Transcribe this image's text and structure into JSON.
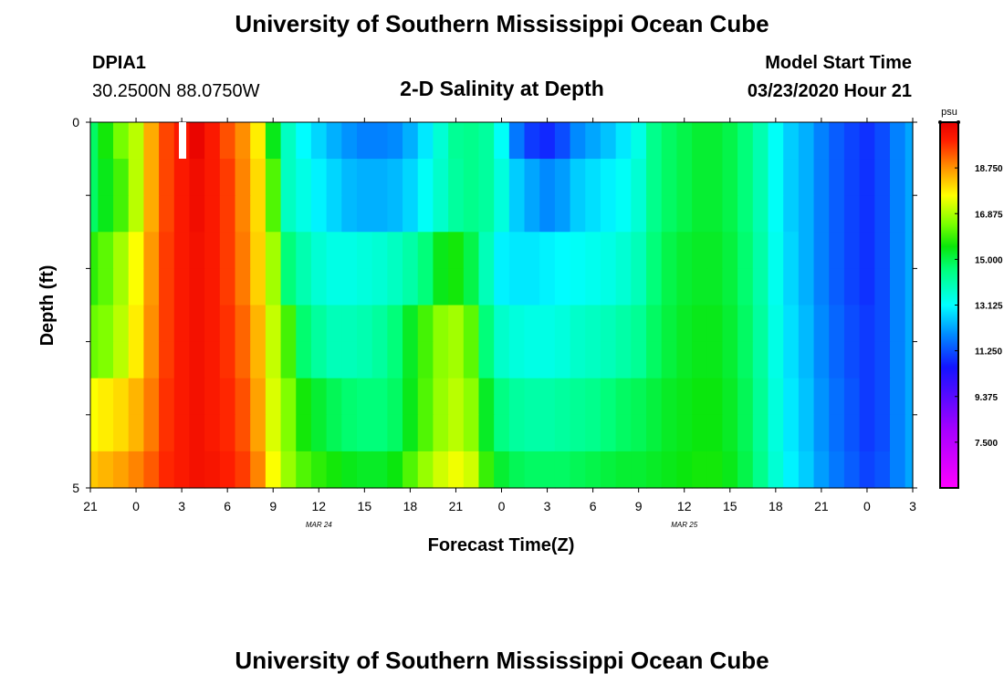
{
  "title_top": "University of Southern Mississippi Ocean Cube",
  "title_bottom": "University of Southern Mississippi Ocean Cube",
  "station": "DPIA1",
  "location": "30.2500N 88.0750W",
  "plot_title": "2-D Salinity at Depth",
  "model_start_label": "Model Start Time",
  "model_start_value": "03/23/2020 Hour 21",
  "chart_data": {
    "type": "heatmap",
    "xlabel": "Forecast Time(Z)",
    "ylabel": "Depth (ft)",
    "x_tick_labels": [
      "21",
      "0",
      "3",
      "6",
      "9",
      "12",
      "15",
      "18",
      "21",
      "0",
      "3",
      "6",
      "9",
      "12",
      "15",
      "18",
      "21",
      "0",
      "3"
    ],
    "date_labels": [
      {
        "label": "MAR 24",
        "at_tick": 5
      },
      {
        "label": "MAR 25",
        "at_tick": 13
      }
    ],
    "y_tick_labels": [
      "0",
      "5"
    ],
    "ylim": [
      0,
      5
    ],
    "colorbar": {
      "unit": "psu",
      "range": [
        5.625,
        20.625
      ],
      "tick_labels": [
        "18.750",
        "16.875",
        "15.000",
        "13.125",
        "11.250",
        "9.375",
        "7.500"
      ],
      "tick_values": [
        18.75,
        16.875,
        15.0,
        13.125,
        11.25,
        9.375,
        7.5
      ]
    },
    "time_hours": [
      0,
      1,
      2,
      3,
      4,
      5,
      6,
      7,
      8,
      9,
      10,
      11,
      12,
      13,
      14,
      15,
      16,
      17,
      18,
      19,
      20,
      21,
      22,
      23,
      24,
      25,
      26,
      27,
      28,
      29,
      30,
      31,
      32,
      33,
      34,
      35,
      36,
      37,
      38,
      39,
      40,
      41,
      42,
      43,
      44,
      45,
      46,
      47,
      48,
      49,
      50,
      51,
      52,
      53,
      54
    ],
    "depth_rows": [
      {
        "depth_ft": 0.0,
        "salinity": [
          14.8,
          15.6,
          16.4,
          17.0,
          18.5,
          19.5,
          20.0,
          20.5,
          20.0,
          19.4,
          18.8,
          17.8,
          15.4,
          13.8,
          13.1,
          12.7,
          12.3,
          12.0,
          11.8,
          11.8,
          11.9,
          12.3,
          12.9,
          13.6,
          14.3,
          14.4,
          14.2,
          13.2,
          11.7,
          11.0,
          10.8,
          11.2,
          11.9,
          12.2,
          12.5,
          12.9,
          13.4,
          14.4,
          14.8,
          15.0,
          15.2,
          15.2,
          15.0,
          14.6,
          14.0,
          13.2,
          12.6,
          12.3,
          11.8,
          11.4,
          11.1,
          10.9,
          11.2,
          11.8,
          12.2
        ]
      },
      {
        "depth_ft": 0.5,
        "salinity": [
          14.8,
          15.4,
          16.0,
          17.0,
          18.5,
          19.5,
          20.0,
          20.3,
          20.0,
          19.6,
          18.9,
          18.0,
          16.1,
          13.8,
          13.4,
          13.0,
          12.7,
          12.4,
          12.3,
          12.3,
          12.4,
          12.7,
          13.2,
          13.7,
          14.2,
          14.4,
          14.2,
          13.5,
          12.6,
          12.2,
          11.9,
          12.1,
          12.6,
          12.8,
          13.0,
          13.2,
          13.6,
          14.4,
          14.8,
          15.0,
          15.2,
          15.2,
          15.0,
          14.6,
          14.0,
          13.2,
          12.6,
          12.3,
          11.8,
          11.4,
          11.1,
          10.9,
          11.2,
          11.8,
          12.2
        ]
      },
      {
        "depth_ft": 1.0,
        "salinity": [
          14.8,
          15.4,
          16.0,
          17.0,
          18.5,
          19.5,
          20.0,
          20.3,
          20.0,
          19.6,
          18.9,
          18.0,
          16.1,
          13.8,
          13.4,
          13.0,
          12.7,
          12.4,
          12.3,
          12.3,
          12.4,
          12.7,
          13.2,
          13.7,
          14.2,
          14.4,
          14.2,
          13.5,
          12.6,
          12.2,
          11.9,
          12.1,
          12.6,
          12.8,
          13.0,
          13.2,
          13.6,
          14.4,
          14.8,
          15.0,
          15.2,
          15.2,
          15.0,
          14.6,
          14.0,
          13.2,
          12.6,
          12.3,
          11.8,
          11.4,
          11.1,
          10.9,
          11.2,
          11.8,
          12.2
        ]
      },
      {
        "depth_ft": 1.5,
        "salinity": [
          15.8,
          16.2,
          16.8,
          17.6,
          18.7,
          19.6,
          20.0,
          20.2,
          20.0,
          19.6,
          19.0,
          18.1,
          16.8,
          14.6,
          14.0,
          13.6,
          13.4,
          13.4,
          13.5,
          13.6,
          13.8,
          14.1,
          14.6,
          15.4,
          15.6,
          15.0,
          13.9,
          13.0,
          12.9,
          12.9,
          13.0,
          13.1,
          13.2,
          13.3,
          13.4,
          13.6,
          13.9,
          14.6,
          15.0,
          15.2,
          15.3,
          15.3,
          15.1,
          14.7,
          14.1,
          13.3,
          12.7,
          12.3,
          11.8,
          11.4,
          11.1,
          10.9,
          11.2,
          11.8,
          12.2
        ]
      },
      {
        "depth_ft": 2.0,
        "salinity": [
          15.8,
          16.2,
          16.8,
          17.6,
          18.7,
          19.6,
          20.0,
          20.2,
          20.0,
          19.6,
          19.0,
          18.1,
          16.8,
          14.6,
          14.0,
          13.6,
          13.4,
          13.4,
          13.5,
          13.6,
          13.8,
          14.1,
          14.6,
          15.4,
          15.6,
          15.0,
          13.9,
          13.0,
          12.9,
          12.9,
          13.0,
          13.1,
          13.2,
          13.3,
          13.4,
          13.6,
          13.9,
          14.6,
          15.0,
          15.2,
          15.3,
          15.3,
          15.1,
          14.7,
          14.1,
          13.3,
          12.7,
          12.3,
          11.8,
          11.4,
          11.1,
          10.9,
          11.2,
          11.8,
          12.2
        ]
      },
      {
        "depth_ft": 2.5,
        "salinity": [
          16.3,
          16.5,
          17.0,
          17.8,
          18.8,
          19.6,
          20.0,
          20.2,
          20.0,
          19.7,
          19.2,
          18.4,
          17.1,
          16.0,
          14.7,
          14.2,
          13.9,
          13.9,
          14.0,
          14.2,
          14.6,
          15.3,
          16.0,
          16.6,
          16.8,
          16.2,
          14.6,
          13.7,
          13.5,
          13.4,
          13.4,
          13.5,
          13.7,
          13.8,
          13.9,
          14.1,
          14.3,
          14.8,
          15.1,
          15.3,
          15.4,
          15.4,
          15.2,
          14.8,
          14.2,
          13.4,
          12.8,
          12.4,
          11.9,
          11.5,
          11.2,
          11.0,
          11.2,
          11.8,
          12.2
        ]
      },
      {
        "depth_ft": 3.0,
        "salinity": [
          16.3,
          16.5,
          17.0,
          17.8,
          18.8,
          19.6,
          20.0,
          20.2,
          20.0,
          19.7,
          19.2,
          18.4,
          17.1,
          16.0,
          14.7,
          14.2,
          13.9,
          13.9,
          14.0,
          14.2,
          14.6,
          15.3,
          16.0,
          16.6,
          16.8,
          16.2,
          14.6,
          13.7,
          13.5,
          13.4,
          13.4,
          13.5,
          13.7,
          13.8,
          13.9,
          14.1,
          14.3,
          14.8,
          15.1,
          15.3,
          15.4,
          15.4,
          15.2,
          14.8,
          14.2,
          13.4,
          12.8,
          12.4,
          11.9,
          11.5,
          11.2,
          11.0,
          11.2,
          11.8,
          12.2
        ]
      },
      {
        "depth_ft": 3.5,
        "salinity": [
          17.6,
          17.8,
          18.0,
          18.4,
          19.0,
          19.7,
          20.0,
          20.2,
          20.0,
          19.8,
          19.4,
          18.6,
          17.3,
          16.5,
          15.6,
          15.2,
          14.9,
          14.7,
          14.6,
          14.6,
          14.8,
          15.4,
          16.1,
          16.7,
          17.0,
          16.6,
          15.3,
          14.5,
          14.2,
          14.1,
          14.1,
          14.2,
          14.3,
          14.4,
          14.6,
          14.8,
          14.9,
          15.1,
          15.3,
          15.4,
          15.5,
          15.5,
          15.3,
          14.9,
          14.3,
          13.5,
          12.9,
          12.5,
          12.0,
          11.6,
          11.3,
          11.0,
          11.2,
          11.8,
          12.2
        ]
      },
      {
        "depth_ft": 4.0,
        "salinity": [
          17.6,
          17.8,
          18.0,
          18.4,
          19.0,
          19.7,
          20.0,
          20.2,
          20.0,
          19.8,
          19.4,
          18.6,
          17.3,
          16.5,
          15.6,
          15.2,
          14.9,
          14.7,
          14.6,
          14.6,
          14.8,
          15.4,
          16.1,
          16.7,
          17.0,
          16.6,
          15.3,
          14.5,
          14.2,
          14.1,
          14.1,
          14.2,
          14.3,
          14.4,
          14.6,
          14.8,
          14.9,
          15.1,
          15.3,
          15.4,
          15.5,
          15.5,
          15.3,
          14.9,
          14.3,
          13.5,
          12.9,
          12.5,
          12.0,
          11.6,
          11.3,
          11.0,
          11.2,
          11.8,
          12.2
        ]
      },
      {
        "depth_ft": 4.5,
        "salinity": [
          18.2,
          18.4,
          18.6,
          18.9,
          19.3,
          19.8,
          20.0,
          20.2,
          20.1,
          19.9,
          19.6,
          18.9,
          17.6,
          16.7,
          16.1,
          15.8,
          15.6,
          15.4,
          15.3,
          15.3,
          15.5,
          16.1,
          16.7,
          17.2,
          17.5,
          17.2,
          15.9,
          15.2,
          14.9,
          14.8,
          14.8,
          14.8,
          14.9,
          15.0,
          15.1,
          15.2,
          15.2,
          15.3,
          15.4,
          15.5,
          15.6,
          15.6,
          15.4,
          15.0,
          14.4,
          13.6,
          13.0,
          12.6,
          12.1,
          11.7,
          11.4,
          11.1,
          11.3,
          11.8,
          12.2
        ]
      }
    ]
  }
}
